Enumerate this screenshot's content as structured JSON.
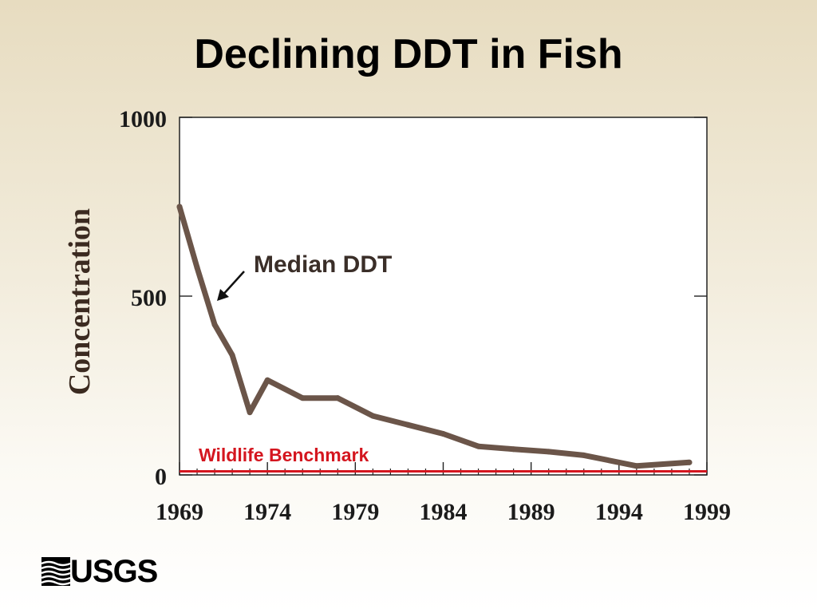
{
  "slide": {
    "title": "Declining DDT in Fish"
  },
  "logo": {
    "text": "USGS",
    "icon": "usgs-wave-icon"
  },
  "colors": {
    "series_line": "#6b5549",
    "benchmark_line": "#d4161f",
    "plot_background": "#ffffff"
  },
  "chart_data": {
    "type": "line",
    "title": "Declining DDT in Fish",
    "xlabel": "",
    "ylabel": "Concentration",
    "xlim": [
      1969,
      1999
    ],
    "ylim": [
      0,
      1000
    ],
    "x_ticks": [
      1969,
      1974,
      1979,
      1984,
      1989,
      1994,
      1999
    ],
    "y_ticks": [
      0,
      500,
      1000
    ],
    "grid": false,
    "series": [
      {
        "name": "Median DDT",
        "x": [
          1969,
          1970,
          1971,
          1972,
          1973,
          1974,
          1976,
          1978,
          1980,
          1982,
          1984,
          1986,
          1988,
          1990,
          1992,
          1995,
          1998
        ],
        "y": [
          750,
          580,
          420,
          335,
          175,
          265,
          215,
          215,
          165,
          140,
          115,
          80,
          72,
          65,
          55,
          25,
          35
        ]
      }
    ],
    "reference_lines": [
      {
        "name": "Wildlife Benchmark",
        "y": 10
      }
    ],
    "annotations": [
      {
        "text": "Median DDT",
        "points_to_x": 1971
      }
    ]
  }
}
